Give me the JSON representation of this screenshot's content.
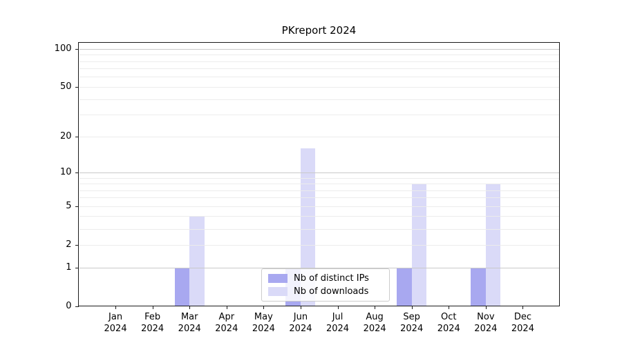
{
  "title": "PKreport 2024",
  "chart_data": {
    "type": "bar",
    "title": "PKreport 2024",
    "categories": [
      "Jan",
      "Feb",
      "Mar",
      "Apr",
      "May",
      "Jun",
      "Jul",
      "Aug",
      "Sep",
      "Oct",
      "Nov",
      "Dec"
    ],
    "category_year": "2024",
    "series": [
      {
        "name": "Nb of distinct IPs",
        "color": "#a8a8f0",
        "values": [
          0,
          0,
          1,
          0,
          0,
          1,
          0,
          0,
          1,
          0,
          1,
          0
        ]
      },
      {
        "name": "Nb of downloads",
        "color": "#dadaf8",
        "values": [
          0,
          0,
          4,
          0,
          0,
          16,
          0,
          0,
          8,
          0,
          8,
          0
        ]
      }
    ],
    "yticks": [
      0,
      1,
      2,
      5,
      10,
      20,
      50,
      100
    ],
    "scale": "log1p",
    "ylim": [
      0,
      112
    ],
    "grid": "both",
    "grid_major_color": "#c9c9c9",
    "grid_minor_color": "#ececec",
    "legend_position": "lower center"
  }
}
